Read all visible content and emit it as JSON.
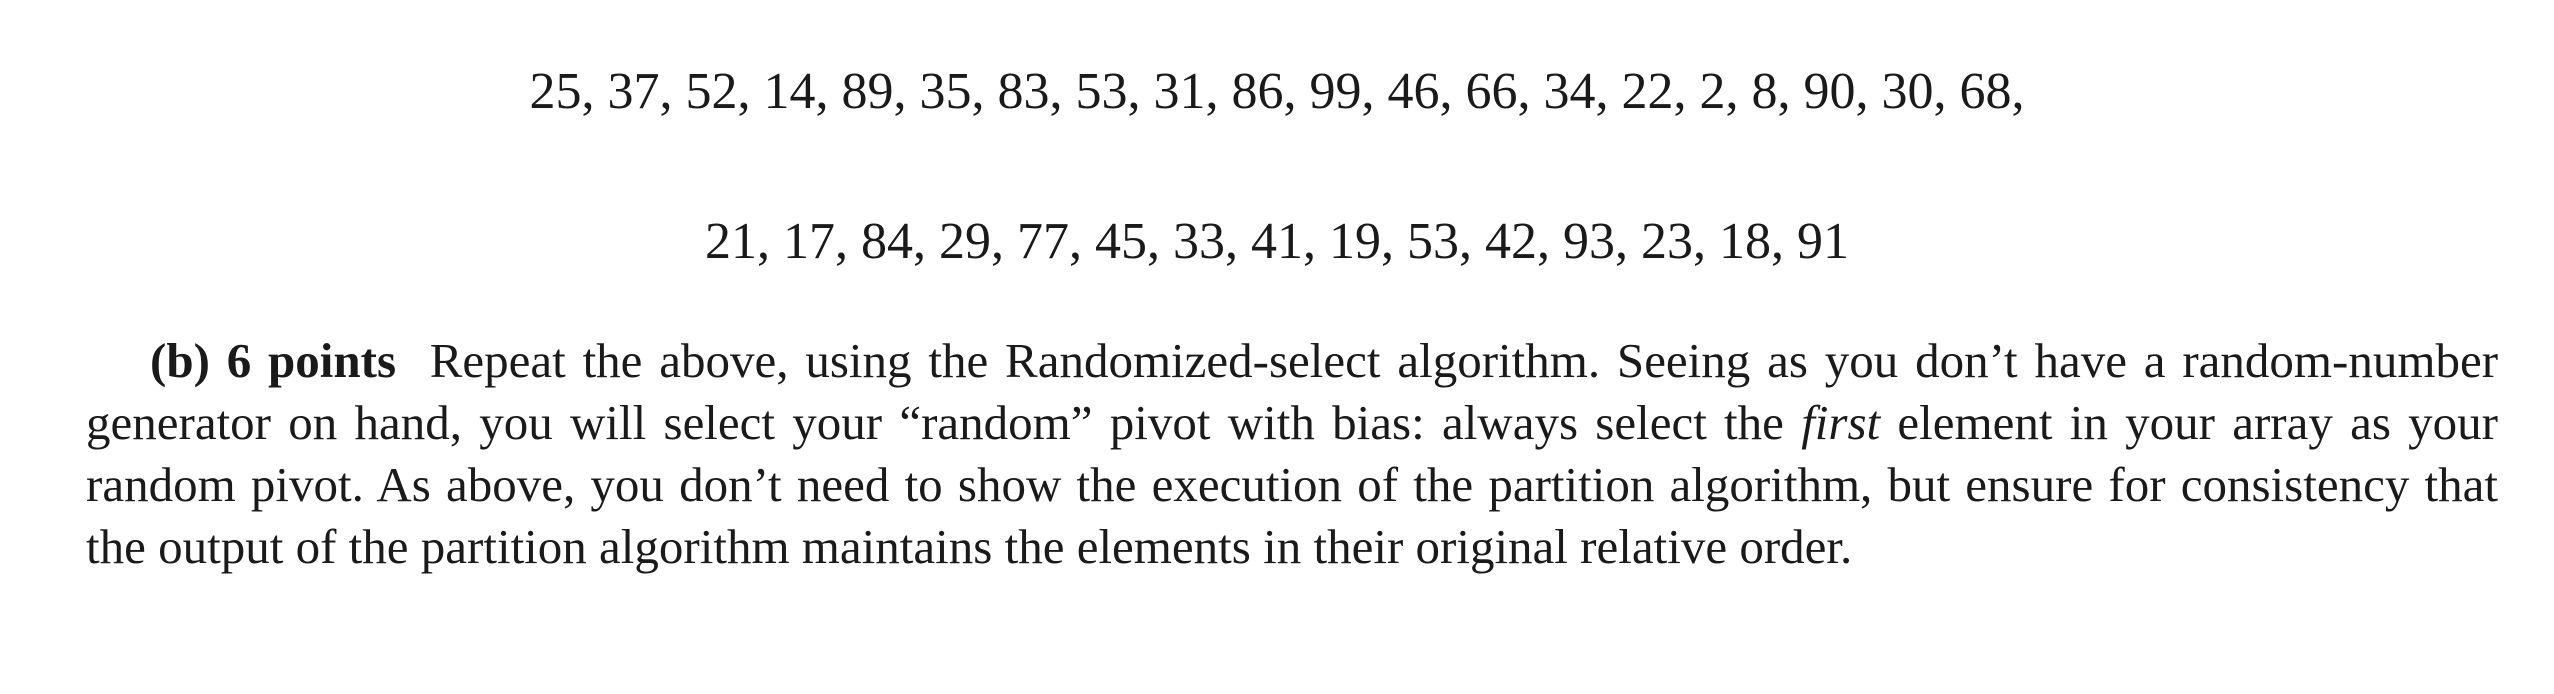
{
  "sequence": {
    "line1": "25, 37, 52, 14, 89, 35, 83, 53, 31, 86, 99, 46, 66, 34, 22, 2, 8, 90, 30, 68,",
    "line2": "21, 17, 84, 29, 77, 45, 33, 41, 19, 53, 42, 93, 23, 18, 91"
  },
  "question": {
    "label": "(b) 6 points",
    "text_before_emphasis": "Repeat the above, using the Randomized-select algorithm.  Seeing as you don’t have a random-number generator on hand, you will select your “random” pivot with bias: always select the ",
    "emphasis": "first",
    "text_after_emphasis": " element in your array as your random pivot. As above, you don’t need to show the execution of the partition algorithm, but ensure for consistency that the output of the partition algorithm maintains the elements in their original relative order."
  }
}
